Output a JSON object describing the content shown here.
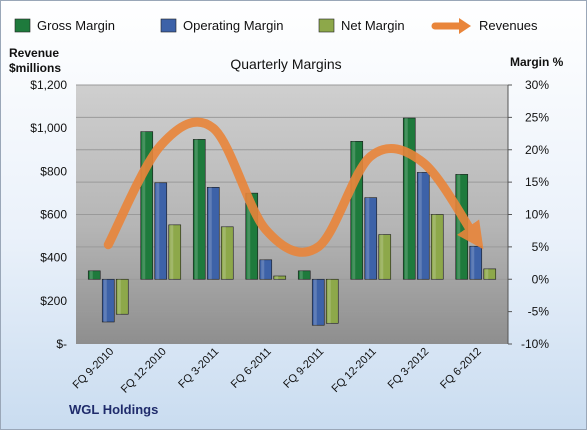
{
  "chart_data": {
    "type": "bar",
    "title": "Quarterly Margins",
    "company": "WGL Holdings",
    "y_left_label_line1": "Revenue",
    "y_left_label_line2": "$millions",
    "y_right_label": "Margin %",
    "categories": [
      "FQ 9-2010",
      "FQ 12-2010",
      "FQ 3-2011",
      "FQ 6-2011",
      "FQ 9-2011",
      "FQ 12-2011",
      "FQ 3-2012",
      "FQ 6-2012"
    ],
    "left_axis": {
      "min": 0,
      "max": 1200,
      "step": 200,
      "tick_labels": [
        "$-",
        "$200",
        "$400",
        "$600",
        "$800",
        "$1,000",
        "$1,200"
      ]
    },
    "right_axis": {
      "min": -10,
      "max": 30,
      "step": 5,
      "tick_labels": [
        "-10%",
        "-5%",
        "0%",
        "5%",
        "10%",
        "15%",
        "20%",
        "25%",
        "30%"
      ]
    },
    "series": [
      {
        "name": "Gross Margin",
        "type": "bar",
        "axis": "right",
        "color": "#1e7a3c",
        "values": [
          1.3,
          22.8,
          21.6,
          13.3,
          1.3,
          21.3,
          24.9,
          16.2
        ]
      },
      {
        "name": "Operating Margin",
        "type": "bar",
        "axis": "right",
        "color": "#3d62a8",
        "values": [
          -6.6,
          14.9,
          14.2,
          3.0,
          -7.1,
          12.6,
          16.5,
          5.1
        ]
      },
      {
        "name": "Net Margin",
        "type": "bar",
        "axis": "right",
        "color": "#8da84a",
        "values": [
          -5.4,
          8.4,
          8.1,
          0.5,
          -6.8,
          6.9,
          10.0,
          1.6
        ]
      },
      {
        "name": "Revenues",
        "type": "line",
        "axis": "left",
        "color": "#e9853a",
        "values": [
          460,
          920,
          1000,
          530,
          450,
          870,
          840,
          490
        ]
      }
    ],
    "grid": true,
    "legend": "top"
  }
}
